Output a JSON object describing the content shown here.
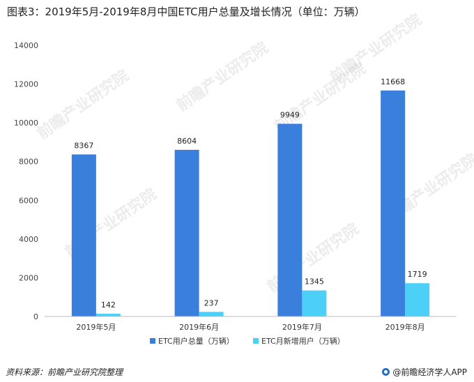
{
  "title": "图表3：2019年5月-2019年8月中国ETC用户总量及增长情况（单位：万辆）",
  "footer": {
    "source": "资料来源：前瞻产业研究院整理",
    "brand": "@前瞻经济学人APP"
  },
  "watermark": "前瞻产业研究院",
  "chart_data": {
    "type": "bar",
    "title": "图表3：2019年5月-2019年8月中国ETC用户总量及增长情况（单位：万辆）",
    "categories": [
      "2019年5月",
      "2019年6月",
      "2019年7月",
      "2019年8月"
    ],
    "series": [
      {
        "name": "ETC用户总量（万辆）",
        "color": "#3a7fdc",
        "values": [
          8367,
          8604,
          9949,
          11668
        ]
      },
      {
        "name": "ETC月新增用户（万辆）",
        "color": "#4dd0f7",
        "values": [
          142,
          237,
          1345,
          1719
        ]
      }
    ],
    "ylim": [
      0,
      14000
    ],
    "yticks": [
      0,
      2000,
      4000,
      6000,
      8000,
      10000,
      12000,
      14000
    ],
    "grid": false,
    "legend": "bottom",
    "data_labels": true
  }
}
